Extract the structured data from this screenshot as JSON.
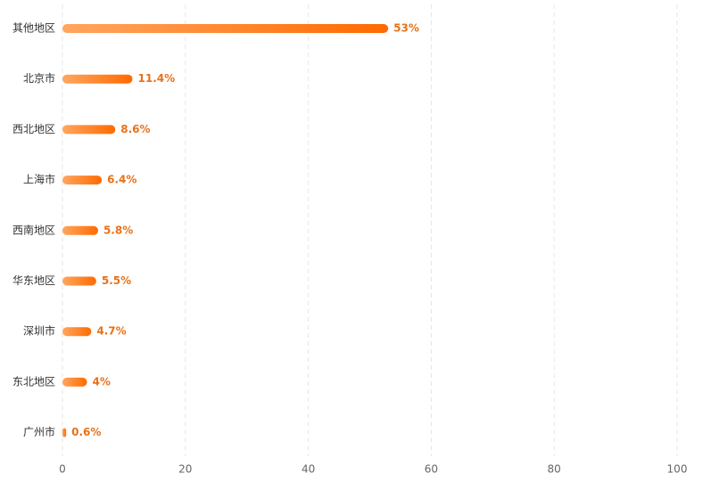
{
  "chart_data": {
    "type": "hbar",
    "categories": [
      "其他地区",
      "北京市",
      "西北地区",
      "上海市",
      "西南地区",
      "华东地区",
      "深圳市",
      "东北地区",
      "广州市"
    ],
    "values": [
      53,
      11.4,
      8.6,
      6.4,
      5.8,
      5.5,
      4.7,
      4,
      0.6
    ],
    "value_labels": [
      "53%",
      "11.4%",
      "8.6%",
      "6.4%",
      "5.8%",
      "5.5%",
      "4.7%",
      "4%",
      "0.6%"
    ],
    "color": "#ff6a00",
    "color_start": "#ffa65f",
    "label_color": "#e8711a",
    "xlim": [
      0,
      100
    ],
    "xticks": [
      0,
      20,
      40,
      60,
      80,
      100
    ],
    "grid": true
  }
}
